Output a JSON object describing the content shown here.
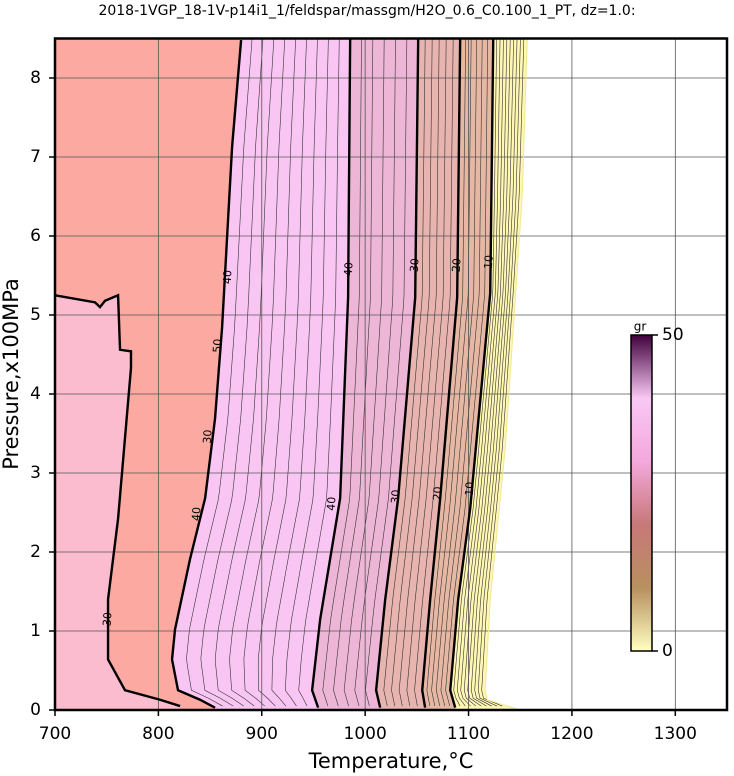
{
  "chart_data": {
    "type": "contour",
    "title": "2018-1VGP_18-1V-p14i1_1/feldspar/massgm/H2O_0.6_C0.100_1_PT, dz=1.0:",
    "x_label": "Temperature,°C",
    "y_label": "Pressure,x100MPa",
    "xlim": [
      700,
      1350
    ],
    "ylim": [
      0,
      8.5
    ],
    "xticks": [
      700,
      800,
      900,
      1000,
      1100,
      1200,
      1300
    ],
    "yticks": [
      0,
      1,
      2,
      3,
      4,
      5,
      6,
      7,
      8
    ],
    "grid": true,
    "contours": [
      {
        "level": 30,
        "x": [
          700,
          738.7,
          743.5,
          748.4,
          761,
          762.9,
          773.5,
          773.5,
          761,
          751.3,
          751.3,
          767.7,
          801.6,
          821
        ],
        "y": [
          5.25,
          5.16,
          5.1,
          5.18,
          5.25,
          4.56,
          4.54,
          4.33,
          2.42,
          1.4,
          0.64,
          0.25,
          0.13,
          0.05
        ]
      },
      {
        "level": 40,
        "x": [
          880,
          871.3,
          861.6,
          854.8,
          845.2,
          830.6,
          816.1,
          813.2,
          819,
          840.3,
          854.8
        ],
        "y": [
          8.48,
          7.13,
          4.84,
          3.69,
          2.68,
          1.91,
          1.02,
          0.64,
          0.25,
          0.13,
          0.03
        ]
      },
      {
        "level": 40,
        "x": [
          985.5,
          983.5,
          975.8,
          956.5,
          948.7,
          954.5
        ],
        "y": [
          8.5,
          5.22,
          2.68,
          1.15,
          0.25,
          0.03
        ]
      },
      {
        "level": 30,
        "x": [
          1051.3,
          1048.4,
          1031.9,
          1019.4,
          1010.6,
          1014.5
        ],
        "y": [
          8.5,
          5.22,
          2.68,
          1.4,
          0.25,
          0.03
        ]
      },
      {
        "level": 20,
        "x": [
          1091.9,
          1089,
          1072.6,
          1062.9,
          1055.2,
          1058
        ],
        "y": [
          8.5,
          5.22,
          2.68,
          1.4,
          0.25,
          0.03
        ]
      },
      {
        "level": 10,
        "x": [
          1123.9,
          1121,
          1101.6,
          1090,
          1082.3,
          1087.1
        ],
        "y": [
          8.5,
          5.28,
          2.55,
          1.4,
          0.25,
          0.03
        ]
      },
      {
        "level": 0,
        "x": [
          1156.8,
          1151.9,
          1135.5,
          1121,
          1116.1,
          1118.1,
          1150
        ],
        "y": [
          8.5,
          6.5,
          3.31,
          1.4,
          0.25,
          0.13,
          0
        ]
      }
    ],
    "contour_labels": [
      {
        "level": 30,
        "x": 751.3,
        "y": 1.15
      },
      {
        "level": 40,
        "x": 867.4,
        "y": 5.48
      },
      {
        "level": 50,
        "x": 857.7,
        "y": 4.61
      },
      {
        "level": 30,
        "x": 848.1,
        "y": 3.46
      },
      {
        "level": 40,
        "x": 837.4,
        "y": 2.48
      },
      {
        "level": 40,
        "x": 984.5,
        "y": 5.58
      },
      {
        "level": 40,
        "x": 968,
        "y": 2.61
      },
      {
        "level": 30,
        "x": 1048.4,
        "y": 5.63
      },
      {
        "level": 30,
        "x": 1030,
        "y": 2.7
      },
      {
        "level": 20,
        "x": 1089,
        "y": 5.63
      },
      {
        "level": 20,
        "x": 1070.6,
        "y": 2.74
      },
      {
        "level": 10,
        "x": 1120,
        "y": 5.67
      },
      {
        "level": 10,
        "x": 1101.6,
        "y": 2.8
      }
    ],
    "colorbar": {
      "label": "gr",
      "lim": [
        0,
        50
      ],
      "ticks": [
        0,
        50
      ],
      "colors": [
        "#ffffc0",
        "#b89060",
        "#c87878",
        "#f4a8dc",
        "#f8c8f4",
        "#40003c"
      ]
    }
  }
}
